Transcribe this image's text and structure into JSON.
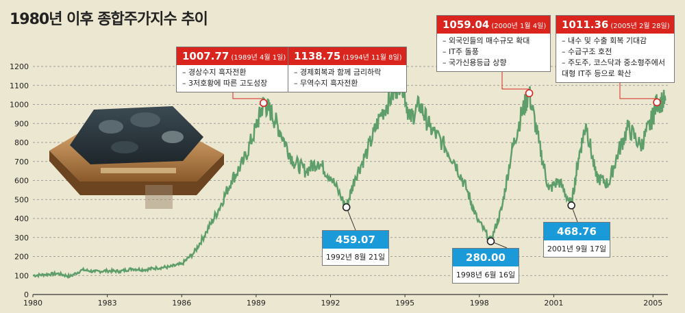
{
  "title": "1980년 이후 종합주가지수 추이",
  "photo_icon": "stock-exchange-floor-photo",
  "colors": {
    "line": "#5e9e6a",
    "peak": "#d9251d",
    "trough": "#1a9ad9",
    "grid": "#888888",
    "background": "#ece7d1"
  },
  "chart_data": {
    "type": "line",
    "title": "1980년 이후 종합주가지수 추이",
    "xlabel": "",
    "ylabel": "",
    "x_ticks": [
      "1980",
      "1983",
      "1986",
      "1989",
      "1992",
      "1995",
      "1998",
      "2001",
      "2005"
    ],
    "y_ticks": [
      0,
      100,
      200,
      300,
      400,
      500,
      600,
      700,
      800,
      900,
      1000,
      1100,
      1200
    ],
    "xlim": [
      1980.0,
      2005.6
    ],
    "ylim": [
      0,
      1200
    ],
    "grid": true,
    "series": [
      {
        "name": "",
        "x": [
          1980.0,
          1980.5,
          1981.0,
          1981.5,
          1982.0,
          1982.5,
          1983.0,
          1983.5,
          1984.0,
          1984.5,
          1985.0,
          1985.5,
          1986.0,
          1986.5,
          1987.0,
          1987.5,
          1988.0,
          1988.5,
          1989.0,
          1989.3,
          1989.6,
          1990.0,
          1990.5,
          1991.0,
          1991.5,
          1992.0,
          1992.64,
          1993.0,
          1993.5,
          1994.0,
          1994.5,
          1994.86,
          1995.2,
          1995.6,
          1996.0,
          1996.5,
          1997.0,
          1997.5,
          1997.9,
          1998.46,
          1998.9,
          1999.3,
          1999.7,
          2000.01,
          2000.4,
          2000.8,
          2001.2,
          2001.71,
          2002.0,
          2002.3,
          2002.7,
          2003.2,
          2003.6,
          2004.0,
          2004.5,
          2004.9,
          2005.16,
          2005.5
        ],
        "values": [
          100,
          105,
          110,
          95,
          130,
          120,
          125,
          122,
          135,
          130,
          140,
          145,
          160,
          220,
          330,
          450,
          600,
          700,
          880,
          1007.77,
          960,
          850,
          700,
          650,
          700,
          620,
          459.07,
          620,
          760,
          940,
          1050,
          1138.75,
          920,
          1000,
          880,
          800,
          700,
          550,
          400,
          280.0,
          450,
          750,
          950,
          1059.04,
          800,
          550,
          600,
          468.76,
          720,
          900,
          620,
          580,
          750,
          880,
          780,
          900,
          1011.36,
          1020
        ]
      }
    ],
    "peaks": [
      {
        "value": "1007.77",
        "date": "(1989년 4월 1일)",
        "notes": [
          "– 경상수지 흑자전환",
          "– 3저호황에 따른 고도성장"
        ]
      },
      {
        "value": "1138.75",
        "date": "(1994년 11월 8일)",
        "notes": [
          "– 경제회복과 함께 금리하락",
          "– 무역수지 흑자전환"
        ]
      },
      {
        "value": "1059.04",
        "date": "(2000년 1월 4일)",
        "notes": [
          "– 외국인들의 매수규모 확대",
          "– IT주 돌풍",
          "– 국가신용등급 상향"
        ]
      },
      {
        "value": "1011.36",
        "date": "(2005년 2월 28일)",
        "notes": [
          "– 내수 및 수출 회복 기대감",
          "– 수급구조 호전",
          "– 주도주, 코스닥과 중소형주에서",
          "대형 IT주 등으로 확산"
        ]
      }
    ],
    "troughs": [
      {
        "value": "459.07",
        "date": "1992년 8월 21일"
      },
      {
        "value": "280.00",
        "date": "1998년 6월 16일"
      },
      {
        "value": "468.76",
        "date": "2001년 9월 17일"
      }
    ]
  }
}
